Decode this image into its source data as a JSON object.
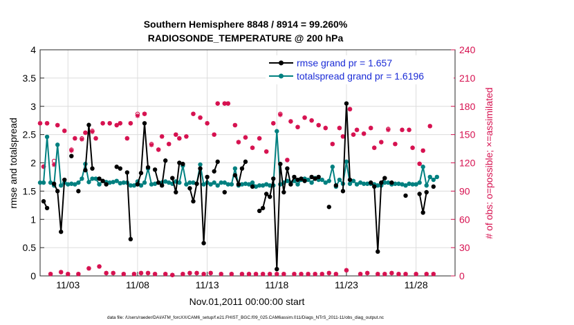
{
  "chart_data": {
    "type": "line",
    "title_line1": "Southern Hemisphere 8848 / 8914 = 99.260%",
    "title_line2": "RADIOSONDE_TEMPERATURE @ 200 hPa",
    "xlabel": "Nov.01,2011 00:00:00 start",
    "ylabel_left": "rmse and totalspread",
    "ylabel_right": "# of obs: o=possible; ×=assimilated",
    "footer": "data file: /Users/raeder/DAI/ATM_forcXX/CAM6_setup/f.e21.FHIST_BGC.f09_025.CAM6assim.011/Diags_NTrS_2011-11/obs_diag_output.nc",
    "x_tick_labels": [
      "11/03",
      "11/08",
      "11/13",
      "11/18",
      "11/23",
      "11/28"
    ],
    "x_tick_days": [
      3,
      8,
      13,
      18,
      23,
      28
    ],
    "xlim": [
      1.0,
      30.8
    ],
    "left_axis": {
      "ylim": [
        0,
        4
      ],
      "ticks": [
        "0",
        "0.5",
        "1",
        "1.5",
        "2",
        "2.5",
        "3",
        "3.5",
        "4"
      ]
    },
    "right_axis": {
      "ylim": [
        0,
        240
      ],
      "ticks": [
        "0",
        "30",
        "60",
        "90",
        "120",
        "150",
        "180",
        "210",
        "240"
      ]
    },
    "legend": {
      "location": "top-right",
      "entries": [
        "rmse grand pr = 1.657",
        "totalspread grand pr = 1.6196"
      ]
    },
    "colors": {
      "rmse": "#000000",
      "totalspread": "#008080",
      "obs": "#d6104f",
      "legend_text": "#1a2bd6",
      "grid": "#dcdcdc"
    },
    "t_start": 1.0,
    "t_step": 0.25,
    "series": [
      {
        "name": "rmse",
        "values": [
          null,
          1.32,
          1.2,
          null,
          1.63,
          1.5,
          0.78,
          1.7,
          null,
          2.12,
          null,
          1.5,
          null,
          1.87,
          2.67,
          1.9,
          null,
          1.72,
          1.68,
          1.62,
          null,
          null,
          1.93,
          1.9,
          null,
          1.83,
          0.65,
          null,
          1.62,
          1.82,
          2.7,
          1.92,
          null,
          1.88,
          1.65,
          1.6,
          2.04,
          null,
          1.73,
          1.48,
          2.0,
          1.98,
          null,
          1.55,
          1.32,
          1.63,
          1.9,
          0.58,
          1.75,
          null,
          1.85,
          2.02,
          null,
          1.48,
          null,
          null,
          1.78,
          1.62,
          1.9,
          2.02,
          null,
          1.58,
          null,
          1.15,
          1.2,
          1.45,
          1.4,
          1.72,
          0.12,
          1.98,
          1.48,
          1.9,
          1.62,
          1.75,
          1.7,
          1.72,
          1.68,
          null,
          1.75,
          1.72,
          1.75,
          null,
          null,
          1.22,
          null,
          1.6,
          null,
          1.5,
          3.05,
          1.7,
          null,
          null,
          null,
          null,
          null,
          1.65,
          1.58,
          0.43,
          1.65,
          1.73,
          null,
          1.65,
          null,
          null,
          null,
          1.42,
          null,
          null,
          null,
          1.45,
          1.12,
          1.48,
          null,
          1.58
        ]
      },
      {
        "name": "totalspread",
        "values": [
          1.65,
          1.65,
          2.46,
          1.65,
          1.6,
          2.32,
          1.6,
          1.65,
          1.62,
          1.63,
          1.62,
          1.65,
          1.72,
          1.98,
          1.66,
          1.72,
          1.72,
          1.62,
          1.68,
          1.66,
          1.65,
          1.66,
          1.68,
          1.64,
          1.65,
          1.65,
          1.6,
          1.6,
          1.67,
          1.6,
          1.65,
          1.9,
          1.62,
          1.63,
          1.65,
          1.65,
          1.67,
          1.65,
          1.63,
          1.67,
          1.65,
          1.95,
          1.62,
          1.65,
          1.65,
          1.63,
          1.97,
          1.62,
          1.65,
          1.62,
          1.65,
          1.6,
          1.65,
          1.65,
          1.62,
          1.62,
          1.9,
          1.6,
          1.62,
          1.63,
          1.62,
          1.65,
          1.58,
          1.6,
          1.6,
          1.62,
          1.6,
          1.6,
          2.56,
          1.62,
          1.65,
          1.68,
          1.65,
          1.68,
          1.62,
          1.7,
          1.72,
          1.7,
          1.65,
          1.73,
          1.7,
          1.7,
          1.65,
          1.68,
          1.93,
          1.58,
          1.7,
          1.63,
          2.02,
          1.63,
          1.68,
          1.62,
          1.65,
          1.63,
          1.63,
          1.63,
          1.62,
          1.6,
          1.6,
          1.65,
          1.65,
          1.62,
          1.63,
          1.63,
          1.62,
          1.6,
          1.63,
          1.62,
          1.62,
          1.65,
          1.93,
          1.6,
          1.75,
          1.7,
          1.75
        ]
      },
      {
        "name": "obs_possible",
        "values": [
          162,
          116,
          162,
          2,
          122,
          160,
          4,
          154,
          2,
          134,
          146,
          2,
          146,
          152,
          8,
          154,
          146,
          10,
          162,
          3,
          162,
          3,
          160,
          162,
          2,
          146,
          162,
          2,
          172,
          3,
          172,
          3,
          140,
          2,
          134,
          148,
          2,
          140,
          1,
          150,
          146,
          2,
          148,
          3,
          172,
          3,
          168,
          2,
          162,
          3,
          150,
          183,
          2,
          183,
          183,
          2,
          160,
          142,
          2,
          147,
          2,
          136,
          2,
          146,
          2,
          132,
          2,
          162,
          2,
          172,
          2,
          123,
          164,
          2,
          158,
          2,
          168,
          2,
          165,
          2,
          160,
          2,
          157,
          3,
          140,
          2,
          157,
          148,
          6,
          177,
          150,
          155,
          2,
          151,
          3,
          157,
          136,
          2,
          142,
          2,
          156,
          3,
          140,
          2,
          155,
          2,
          155,
          136,
          2,
          119,
          133,
          2,
          159,
          2
        ]
      },
      {
        "name": "obs_assimilated",
        "values": [
          162,
          116,
          162,
          2,
          118,
          160,
          4,
          154,
          2,
          133,
          146,
          2,
          145,
          152,
          8,
          153,
          146,
          10,
          162,
          3,
          162,
          3,
          160,
          162,
          2,
          146,
          162,
          2,
          170,
          3,
          172,
          3,
          139,
          2,
          134,
          148,
          2,
          140,
          1,
          150,
          146,
          2,
          148,
          3,
          172,
          3,
          168,
          2,
          162,
          3,
          150,
          183,
          2,
          183,
          183,
          2,
          160,
          142,
          2,
          147,
          2,
          136,
          2,
          146,
          2,
          132,
          2,
          162,
          2,
          171,
          2,
          123,
          164,
          2,
          158,
          2,
          168,
          2,
          165,
          2,
          160,
          2,
          157,
          3,
          140,
          2,
          157,
          148,
          6,
          177,
          150,
          155,
          2,
          151,
          3,
          157,
          136,
          2,
          142,
          2,
          155,
          3,
          140,
          2,
          155,
          2,
          155,
          136,
          2,
          119,
          133,
          2,
          159,
          2
        ]
      }
    ]
  }
}
